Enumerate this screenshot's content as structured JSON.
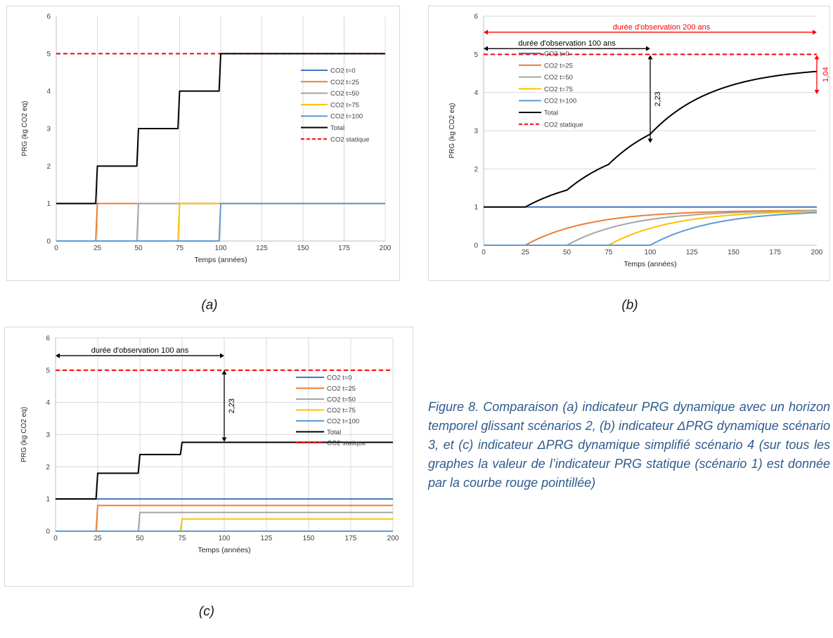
{
  "charts": [
    {
      "id": "a",
      "type": "line",
      "xlabel": "Temps (années)",
      "ylabel": "PRG (kg CO2 eq)",
      "xlim": [
        0,
        200
      ],
      "ylim": [
        0,
        6
      ],
      "xticks": [
        0,
        25,
        50,
        75,
        100,
        125,
        150,
        175,
        200
      ],
      "yticks": [
        0,
        1,
        2,
        3,
        4,
        5,
        6
      ],
      "grid": "vertical",
      "legend_placement": "right",
      "series": [
        {
          "name": "CO2 t=0",
          "color": "#4472C4",
          "dash": "",
          "width": 2,
          "kind": "line",
          "points": [
            [
              0,
              1
            ],
            [
              25,
              1
            ]
          ]
        },
        {
          "name": "CO2 t=25",
          "color": "#ED7D31",
          "dash": "",
          "width": 2,
          "kind": "line",
          "points": [
            [
              0,
              0
            ],
            [
              24,
              0
            ],
            [
              25,
              1
            ],
            [
              200,
              1
            ]
          ]
        },
        {
          "name": "CO2 t=50",
          "color": "#A5A5A5",
          "dash": "",
          "width": 2,
          "kind": "line",
          "points": [
            [
              0,
              0
            ],
            [
              49,
              0
            ],
            [
              50,
              1
            ],
            [
              200,
              1
            ]
          ]
        },
        {
          "name": "CO2 t=75",
          "color": "#FFC000",
          "dash": "",
          "width": 2,
          "kind": "line",
          "points": [
            [
              0,
              0
            ],
            [
              74,
              0
            ],
            [
              75,
              1
            ],
            [
              200,
              1
            ]
          ]
        },
        {
          "name": "CO2 t=100",
          "color": "#5B9BD5",
          "dash": "",
          "width": 2,
          "kind": "line",
          "points": [
            [
              0,
              0
            ],
            [
              99,
              0
            ],
            [
              100,
              1
            ],
            [
              200,
              1
            ]
          ]
        },
        {
          "name": "Total",
          "color": "#000000",
          "dash": "",
          "width": 2,
          "kind": "line",
          "points": [
            [
              0,
              1
            ],
            [
              24,
              1
            ],
            [
              25,
              2
            ],
            [
              49,
              2
            ],
            [
              50,
              3
            ],
            [
              74,
              3
            ],
            [
              75,
              4
            ],
            [
              99,
              4
            ],
            [
              100,
              5
            ],
            [
              200,
              5
            ]
          ]
        },
        {
          "name": "CO2 statique",
          "color": "#FF0000",
          "dash": "6,4",
          "width": 2,
          "kind": "line",
          "points": [
            [
              0,
              5
            ],
            [
              200,
              5
            ]
          ]
        }
      ],
      "annotations": []
    },
    {
      "id": "b",
      "type": "line",
      "xlabel": "Temps (années)",
      "ylabel": "PRG (kg CO2 eq)",
      "xlim": [
        0,
        200
      ],
      "ylim": [
        0,
        6
      ],
      "xticks": [
        0,
        25,
        50,
        75,
        100,
        125,
        150,
        175,
        200
      ],
      "yticks": [
        0,
        1,
        2,
        3,
        4,
        5,
        6
      ],
      "grid": "horizontal",
      "legend_placement": "left",
      "series": [
        {
          "name": "CO2 t=0",
          "color": "#4472C4",
          "dash": "",
          "width": 2,
          "kind": "line",
          "points": [
            [
              0,
              1
            ],
            [
              200,
              1
            ]
          ]
        },
        {
          "name": "CO2 t=25",
          "color": "#ED7D31",
          "dash": "",
          "width": 2,
          "kind": "decay",
          "start": 25,
          "amp": 0.92,
          "tau": 38
        },
        {
          "name": "CO2 t=50",
          "color": "#A5A5A5",
          "dash": "",
          "width": 2,
          "kind": "decay",
          "start": 50,
          "amp": 0.92,
          "tau": 38
        },
        {
          "name": "CO2 t=75",
          "color": "#FFC000",
          "dash": "",
          "width": 2,
          "kind": "decay",
          "start": 75,
          "amp": 0.92,
          "tau": 38
        },
        {
          "name": "CO2 t=100",
          "color": "#5B9BD5",
          "dash": "",
          "width": 2,
          "kind": "decay",
          "start": 100,
          "amp": 0.92,
          "tau": 38
        },
        {
          "name": "Total",
          "color": "#000000",
          "dash": "",
          "width": 2,
          "kind": "sum"
        },
        {
          "name": "CO2 statique",
          "color": "#FF0000",
          "dash": "6,4",
          "width": 2,
          "kind": "line",
          "points": [
            [
              0,
              5
            ],
            [
              200,
              5
            ]
          ]
        }
      ],
      "annotations": [
        {
          "type": "hspan",
          "label": "durée d'observation 200 ans",
          "x0": 0,
          "x1": 200,
          "y": 5.58,
          "color": "#FF0000"
        },
        {
          "type": "hspan",
          "label": "durée d'observation 100 ans",
          "x0": 0,
          "x1": 100,
          "y": 5.15,
          "color": "#000000"
        },
        {
          "type": "vspan",
          "label": "2,23",
          "x": 100,
          "y0": 2.68,
          "y1": 4.98,
          "color": "#000000"
        },
        {
          "type": "vspan",
          "label": "1,04",
          "x": 200,
          "y0": 3.96,
          "y1": 4.98,
          "color": "#FF0000"
        }
      ]
    },
    {
      "id": "c",
      "type": "line",
      "xlabel": "Temps (années)",
      "ylabel": "PRG (kg CO2 eq)",
      "xlim": [
        0,
        200
      ],
      "ylim": [
        0,
        6
      ],
      "xticks": [
        0,
        25,
        50,
        75,
        100,
        125,
        150,
        175,
        200
      ],
      "yticks": [
        0,
        1,
        2,
        3,
        4,
        5,
        6
      ],
      "grid": "both",
      "legend_placement": "right",
      "series": [
        {
          "name": "CO2 t=0",
          "color": "#4472C4",
          "dash": "",
          "width": 2,
          "kind": "line",
          "points": [
            [
              0,
              1
            ],
            [
              200,
              1
            ]
          ]
        },
        {
          "name": "CO2 t=25",
          "color": "#ED7D31",
          "dash": "",
          "width": 2,
          "kind": "line",
          "points": [
            [
              0,
              0
            ],
            [
              24,
              0
            ],
            [
              25,
              0.8
            ],
            [
              200,
              0.8
            ]
          ]
        },
        {
          "name": "CO2 t=50",
          "color": "#A5A5A5",
          "dash": "",
          "width": 2,
          "kind": "line",
          "points": [
            [
              0,
              0
            ],
            [
              49,
              0
            ],
            [
              50,
              0.58
            ],
            [
              200,
              0.58
            ]
          ]
        },
        {
          "name": "CO2 t=75",
          "color": "#FFC000",
          "dash": "",
          "width": 2,
          "kind": "line",
          "points": [
            [
              0,
              0
            ],
            [
              74,
              0
            ],
            [
              75,
              0.38
            ],
            [
              200,
              0.38
            ]
          ]
        },
        {
          "name": "CO2 t=100",
          "color": "#5B9BD5",
          "dash": "",
          "width": 2,
          "kind": "line",
          "points": [
            [
              0,
              0
            ],
            [
              200,
              0
            ]
          ]
        },
        {
          "name": "Total",
          "color": "#000000",
          "dash": "",
          "width": 2,
          "kind": "line",
          "points": [
            [
              0,
              1
            ],
            [
              24,
              1
            ],
            [
              25,
              1.8
            ],
            [
              49,
              1.8
            ],
            [
              50,
              2.38
            ],
            [
              74,
              2.38
            ],
            [
              75,
              2.76
            ],
            [
              200,
              2.76
            ]
          ]
        },
        {
          "name": "CO2 statique",
          "color": "#FF0000",
          "dash": "6,4",
          "width": 2,
          "kind": "line",
          "points": [
            [
              0,
              5
            ],
            [
              200,
              5
            ]
          ]
        }
      ],
      "annotations": [
        {
          "type": "hspan",
          "label": "durée d'observation 100 ans",
          "x0": 0,
          "x1": 100,
          "y": 5.45,
          "color": "#000000"
        },
        {
          "type": "vspan",
          "label": "2,23",
          "x": 100,
          "y0": 2.78,
          "y1": 5.0,
          "color": "#000000"
        }
      ]
    }
  ],
  "sublabels": {
    "a": "(a)",
    "b": "(b)",
    "c": "(c)"
  },
  "caption": "Figure 8. Comparaison (a) indicateur PRG dynamique avec un horizon temporel glissant scénarios 2, (b) indicateur ΔPRG dynamique scénario 3, et (c) indicateur ΔPRG dynamique simplifié scénario 4 (sur tous les graphes la valeur de l’indicateur PRG statique (scénario 1) est donnée par la courbe rouge pointillée)"
}
